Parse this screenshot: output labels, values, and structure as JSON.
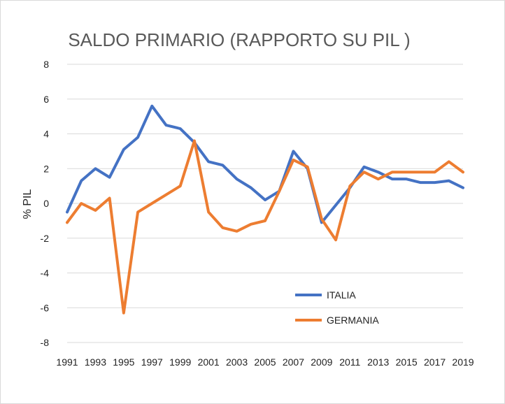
{
  "chart_data": {
    "type": "line",
    "title": "SALDO PRIMARIO (RAPPORTO SU PIL )",
    "xlabel": "",
    "ylabel": "% PIL",
    "ylim": [
      -8,
      8
    ],
    "yticks": [
      "8",
      "6",
      "4",
      "2",
      "0",
      "-2",
      "-4",
      "-6",
      "-8"
    ],
    "ytick_values": [
      8,
      6,
      4,
      2,
      0,
      -2,
      -4,
      -6,
      -8
    ],
    "x": [
      1991,
      1992,
      1993,
      1994,
      1995,
      1996,
      1997,
      1998,
      1999,
      2000,
      2001,
      2002,
      2003,
      2004,
      2005,
      2006,
      2007,
      2008,
      2009,
      2010,
      2011,
      2012,
      2013,
      2014,
      2015,
      2016,
      2017,
      2018,
      2019
    ],
    "xtick_labels": [
      "1991",
      "1993",
      "1995",
      "1997",
      "1999",
      "2001",
      "2003",
      "2005",
      "2007",
      "2009",
      "2011",
      "2013",
      "2015",
      "2017",
      "2019"
    ],
    "xtick_values": [
      1991,
      1993,
      1995,
      1997,
      1999,
      2001,
      2003,
      2005,
      2007,
      2009,
      2011,
      2013,
      2015,
      2017,
      2019
    ],
    "grid": true,
    "legend_position": "bottom-right-inside",
    "series": [
      {
        "name": "ITALIA",
        "color": "#4472c4",
        "values": [
          -0.5,
          1.3,
          2.0,
          1.5,
          3.1,
          3.8,
          5.6,
          4.5,
          4.3,
          3.5,
          2.4,
          2.2,
          1.4,
          0.9,
          0.2,
          0.7,
          3.0,
          2.0,
          -1.1,
          -0.1,
          0.9,
          2.1,
          1.8,
          1.4,
          1.4,
          1.2,
          1.2,
          1.3,
          0.9
        ]
      },
      {
        "name": "GERMANIA",
        "color": "#ed7d31",
        "values": [
          -1.1,
          0.0,
          -0.4,
          0.3,
          -6.3,
          -0.5,
          0.0,
          0.5,
          1.0,
          3.6,
          -0.5,
          -1.4,
          -1.6,
          -1.2,
          -1.0,
          0.7,
          2.5,
          2.1,
          -0.9,
          -2.1,
          1.0,
          1.8,
          1.4,
          1.8,
          1.8,
          1.8,
          1.8,
          2.4,
          1.8
        ]
      }
    ]
  }
}
